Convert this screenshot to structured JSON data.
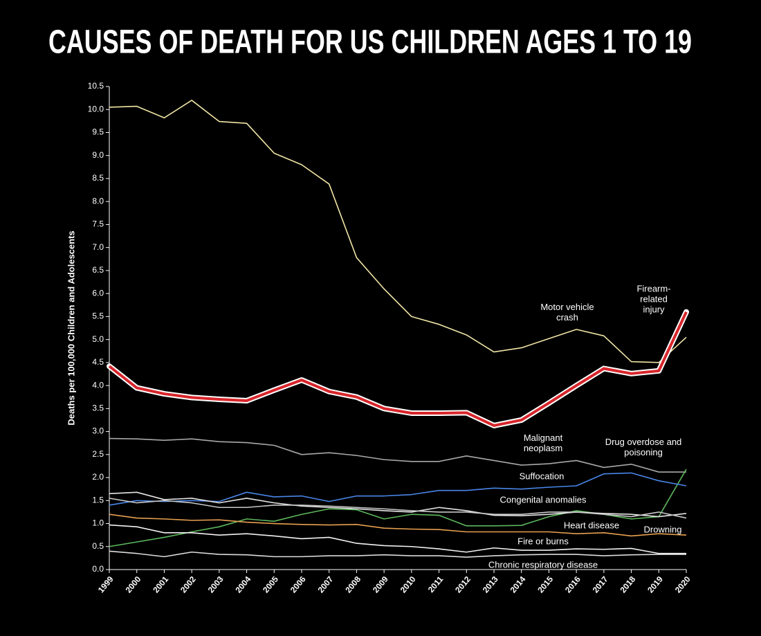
{
  "chart_data": {
    "type": "line",
    "title": "CAUSES OF DEATH FOR US CHILDREN AGES 1 TO 19",
    "y_label": "Deaths per 100,000 Children and Adolescents",
    "categories": [
      "1999",
      "2000",
      "2001",
      "2002",
      "2003",
      "2004",
      "2005",
      "2006",
      "2007",
      "2008",
      "2009",
      "2010",
      "2011",
      "2012",
      "2013",
      "2014",
      "2015",
      "2016",
      "2017",
      "2018",
      "2019",
      "2020"
    ],
    "ylim": [
      0,
      10.5
    ],
    "yticks": [
      {
        "value": 0,
        "label": "0.0"
      },
      0.5,
      {
        "value": 1,
        "label": "1.0"
      },
      1.5,
      {
        "value": 2,
        "label": "2.0"
      },
      2.5,
      {
        "value": 3,
        "label": "3.0"
      },
      3.5,
      {
        "value": 4,
        "label": "4.0"
      },
      4.5,
      {
        "value": 5,
        "label": "5.0"
      },
      5.5,
      {
        "value": 6,
        "label": "6.0"
      },
      6.5,
      {
        "value": 7,
        "label": "7.0"
      },
      7.5,
      {
        "value": 8,
        "label": "8.0"
      },
      8.5,
      {
        "value": 9,
        "label": "9.0"
      },
      9.5,
      {
        "value": 10,
        "label": "10.0"
      },
      10.5
    ],
    "series": [
      {
        "name": "Motor vehicle crash",
        "color": "#f1e6a6",
        "values": [
          10.05,
          10.07,
          9.82,
          10.2,
          9.74,
          9.7,
          9.05,
          8.8,
          8.38,
          6.78,
          6.1,
          5.5,
          5.33,
          5.1,
          4.73,
          4.82,
          5.02,
          5.22,
          5.08,
          4.52,
          4.5,
          5.05
        ]
      },
      {
        "name": "Firearm-related injury",
        "color": "#d7262b",
        "outline": "#ffffff",
        "values": [
          4.42,
          3.95,
          3.82,
          3.74,
          3.7,
          3.67,
          3.9,
          4.12,
          3.87,
          3.75,
          3.5,
          3.4,
          3.4,
          3.41,
          3.13,
          3.25,
          3.62,
          4.0,
          4.37,
          4.26,
          4.32,
          5.6
        ]
      },
      {
        "name": "Malignant neoplasm",
        "color": "#a9a9a9",
        "values": [
          2.85,
          2.84,
          2.81,
          2.84,
          2.78,
          2.76,
          2.7,
          2.5,
          2.54,
          2.48,
          2.39,
          2.35,
          2.35,
          2.47,
          2.37,
          2.27,
          2.3,
          2.37,
          2.22,
          2.29,
          2.12,
          2.12
        ]
      },
      {
        "name": "Drug overdose and poisoning",
        "color": "#5cb85c",
        "values": [
          0.5,
          0.6,
          0.7,
          0.82,
          0.93,
          1.1,
          1.05,
          1.2,
          1.32,
          1.3,
          1.1,
          1.2,
          1.18,
          0.95,
          0.95,
          0.96,
          1.15,
          1.28,
          1.2,
          1.1,
          1.15,
          2.18
        ]
      },
      {
        "name": "Suffocation",
        "color": "#4a86e8",
        "values": [
          1.4,
          1.5,
          1.48,
          1.5,
          1.48,
          1.68,
          1.58,
          1.6,
          1.48,
          1.6,
          1.6,
          1.63,
          1.72,
          1.72,
          1.77,
          1.75,
          1.79,
          1.82,
          2.08,
          2.1,
          1.93,
          1.82
        ]
      },
      {
        "name": "Congenital anomalies",
        "color": "#e6e6e6",
        "values": [
          1.65,
          1.68,
          1.52,
          1.55,
          1.45,
          1.55,
          1.45,
          1.38,
          1.35,
          1.32,
          1.28,
          1.25,
          1.35,
          1.28,
          1.18,
          1.17,
          1.2,
          1.25,
          1.22,
          1.2,
          1.15,
          1.22
        ]
      },
      {
        "name": "Heart disease",
        "color": "#e8a050",
        "values": [
          1.2,
          1.12,
          1.1,
          1.07,
          1.08,
          1.03,
          1.0,
          0.98,
          0.97,
          0.98,
          0.9,
          0.88,
          0.87,
          0.82,
          0.82,
          0.82,
          0.82,
          0.78,
          0.8,
          0.73,
          0.78,
          0.75
        ]
      },
      {
        "name": "Drowning",
        "color": "#c8c8c8",
        "values": [
          1.55,
          1.45,
          1.5,
          1.45,
          1.35,
          1.35,
          1.4,
          1.4,
          1.38,
          1.35,
          1.32,
          1.28,
          1.25,
          1.25,
          1.2,
          1.2,
          1.25,
          1.25,
          1.2,
          1.15,
          1.25,
          1.12
        ]
      },
      {
        "name": "Fire or burns",
        "color": "#f2f2f2",
        "values": [
          0.97,
          0.93,
          0.8,
          0.8,
          0.75,
          0.78,
          0.73,
          0.67,
          0.7,
          0.57,
          0.52,
          0.5,
          0.45,
          0.38,
          0.47,
          0.42,
          0.42,
          0.45,
          0.44,
          0.46,
          0.35,
          0.35
        ]
      },
      {
        "name": "Chronic respiratory disease",
        "color": "#dcdcdc",
        "values": [
          0.4,
          0.35,
          0.28,
          0.38,
          0.33,
          0.32,
          0.28,
          0.28,
          0.3,
          0.3,
          0.32,
          0.3,
          0.3,
          0.27,
          0.3,
          0.32,
          0.33,
          0.33,
          0.3,
          0.32,
          0.33,
          0.33
        ]
      }
    ]
  }
}
